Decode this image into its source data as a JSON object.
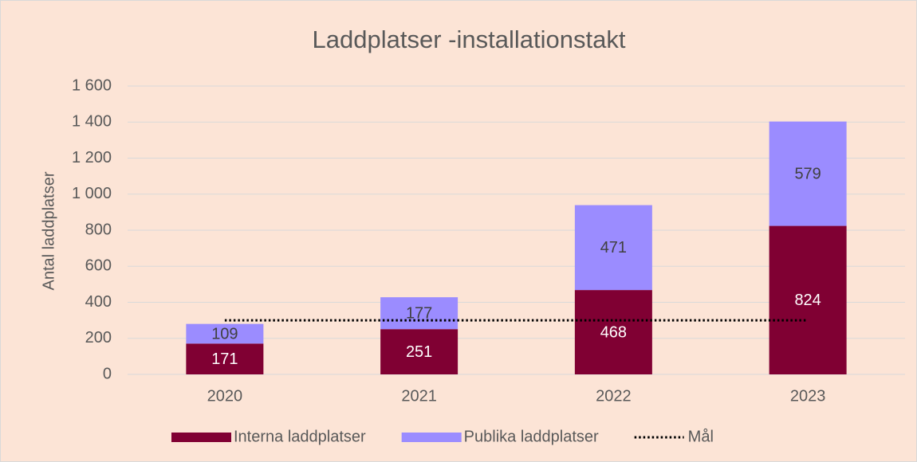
{
  "chart_data": {
    "type": "bar",
    "stacked": true,
    "title": "Laddplatser -installationstakt",
    "ylabel": "Antal laddplatser",
    "categories": [
      "2020",
      "2021",
      "2022",
      "2023"
    ],
    "series": [
      {
        "name": "Interna laddplatser",
        "color": "#800033",
        "values": [
          171,
          251,
          468,
          824
        ]
      },
      {
        "name": "Publika laddplatser",
        "color": "#9b8cff",
        "values": [
          109,
          177,
          471,
          579
        ]
      },
      {
        "name": "Mål",
        "type": "line",
        "linestyle": "dotted",
        "color": "#000000",
        "values": [
          300,
          300,
          300,
          300
        ]
      }
    ],
    "ylim": [
      0,
      1600
    ],
    "yticks": [
      0,
      200,
      400,
      600,
      800,
      {
        "value": 1000,
        "label": "1 000"
      },
      {
        "value": 1200,
        "label": "1 200"
      },
      {
        "value": 1400,
        "label": "1 400"
      },
      {
        "value": 1600,
        "label": "1 600"
      }
    ],
    "grid": true,
    "legend": "bottom"
  }
}
